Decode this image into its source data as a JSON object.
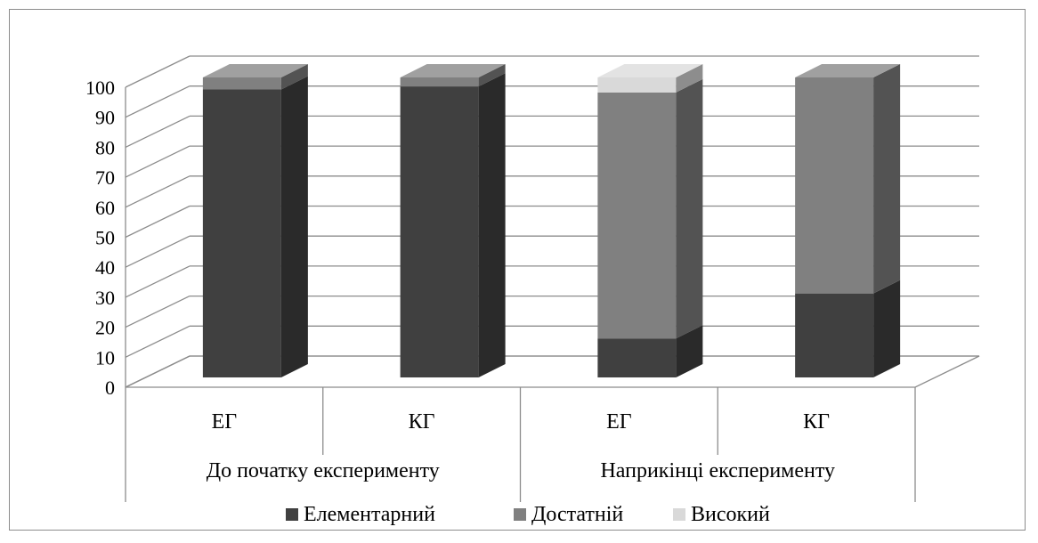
{
  "chart_data": {
    "type": "bar",
    "subtype": "stacked-3d-column",
    "title": "",
    "xlabel": "",
    "ylabel": "",
    "ylim": [
      0,
      100
    ],
    "y_ticks": [
      "0",
      "10",
      "20",
      "30",
      "40",
      "50",
      "60",
      "70",
      "80",
      "90",
      "100"
    ],
    "categories": [
      "ЕГ",
      "КГ",
      "ЕГ",
      "КГ"
    ],
    "groups": [
      {
        "label": "До початку експерименту",
        "categories": [
          "ЕГ",
          "КГ"
        ]
      },
      {
        "label": "Наприкінці експерименту",
        "categories": [
          "ЕГ",
          "КГ"
        ]
      }
    ],
    "series": [
      {
        "name": "Елементарний",
        "color": "#404040",
        "values": [
          96,
          97,
          13,
          28
        ]
      },
      {
        "name": "Достатній",
        "color": "#808080",
        "values": [
          4,
          3,
          82,
          72
        ]
      },
      {
        "name": "Високий",
        "color": "#d9d9d9",
        "values": [
          0,
          0,
          5,
          0
        ]
      }
    ],
    "grid": true,
    "legend_position": "bottom"
  }
}
